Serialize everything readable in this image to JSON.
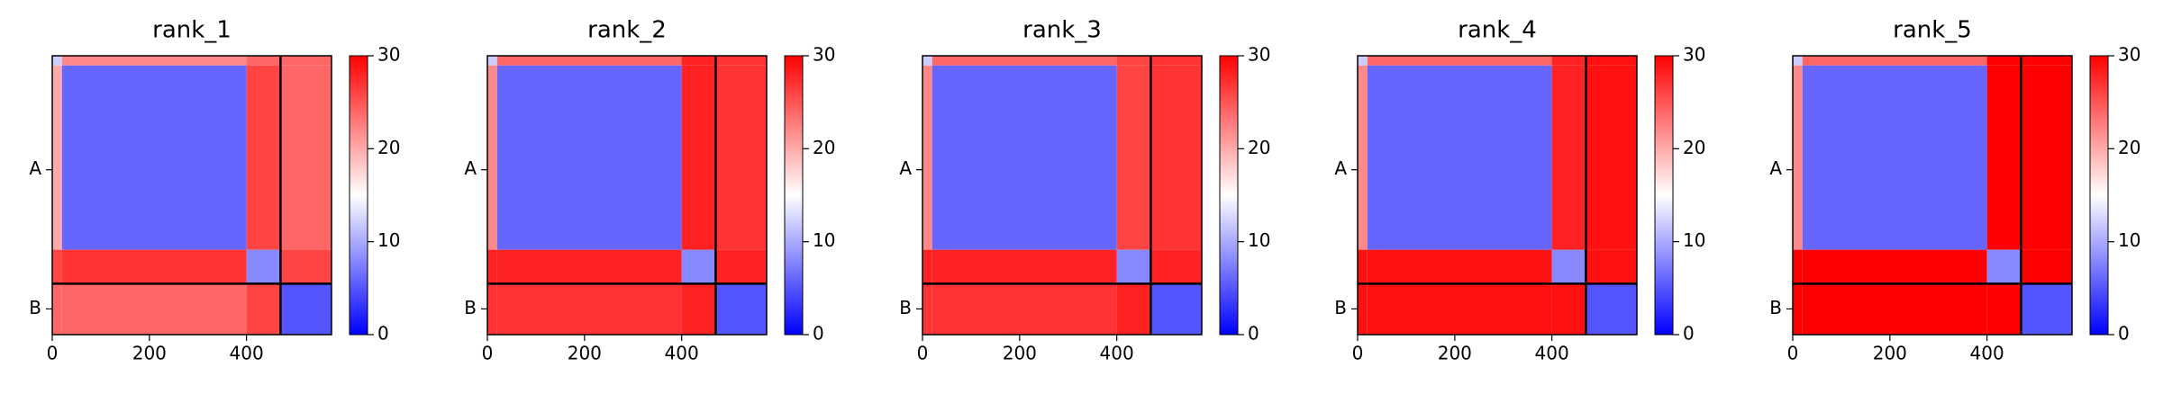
{
  "chart_data": [
    {
      "type": "heatmap",
      "title": "rank_1",
      "edges": [
        0,
        20,
        400,
        470,
        575
      ],
      "values": [
        [
          12,
          22,
          24,
          24
        ],
        [
          20,
          6,
          26,
          24
        ],
        [
          26,
          27,
          8,
          26
        ],
        [
          24,
          24,
          26,
          5
        ]
      ],
      "cmap": [
        "#0000ff",
        "#ffffff",
        "#ff0000"
      ],
      "xlim": [
        0,
        575
      ],
      "ylim": [
        575,
        0
      ],
      "xticks": [
        0,
        200,
        400
      ],
      "yticks": [
        {
          "value": 235,
          "label": "A"
        },
        {
          "value": 522,
          "label": "B"
        }
      ],
      "chain_boundaries": [
        470
      ],
      "colorbar_lim": [
        0,
        30
      ],
      "colorbar_ticks": [
        0,
        10,
        20,
        30
      ]
    },
    {
      "type": "heatmap",
      "title": "rank_2",
      "edges": [
        0,
        20,
        400,
        470,
        575
      ],
      "values": [
        [
          12,
          24,
          28,
          27
        ],
        [
          22,
          6,
          28,
          27
        ],
        [
          28,
          28,
          8,
          28
        ],
        [
          27,
          27,
          28,
          5
        ]
      ],
      "cmap": [
        "#0000ff",
        "#ffffff",
        "#ff0000"
      ],
      "xlim": [
        0,
        575
      ],
      "ylim": [
        575,
        0
      ],
      "xticks": [
        0,
        200,
        400
      ],
      "yticks": [
        {
          "value": 235,
          "label": "A"
        },
        {
          "value": 522,
          "label": "B"
        }
      ],
      "chain_boundaries": [
        470
      ],
      "colorbar_lim": [
        0,
        30
      ],
      "colorbar_ticks": [
        0,
        10,
        20,
        30
      ]
    },
    {
      "type": "heatmap",
      "title": "rank_3",
      "edges": [
        0,
        20,
        400,
        470,
        575
      ],
      "values": [
        [
          12,
          24,
          26,
          27
        ],
        [
          22,
          6,
          26,
          27
        ],
        [
          28,
          28,
          8,
          28
        ],
        [
          27,
          27,
          28,
          5
        ]
      ],
      "cmap": [
        "#0000ff",
        "#ffffff",
        "#ff0000"
      ],
      "xlim": [
        0,
        575
      ],
      "ylim": [
        575,
        0
      ],
      "xticks": [
        0,
        200,
        400
      ],
      "yticks": [
        {
          "value": 235,
          "label": "A"
        },
        {
          "value": 522,
          "label": "B"
        }
      ],
      "chain_boundaries": [
        470
      ],
      "colorbar_lim": [
        0,
        30
      ],
      "colorbar_ticks": [
        0,
        10,
        20,
        30
      ]
    },
    {
      "type": "heatmap",
      "title": "rank_4",
      "edges": [
        0,
        20,
        400,
        470,
        575
      ],
      "values": [
        [
          12,
          24,
          28,
          29
        ],
        [
          22,
          6,
          28,
          29
        ],
        [
          29,
          29,
          8,
          29
        ],
        [
          29,
          29,
          29,
          5
        ]
      ],
      "cmap": [
        "#0000ff",
        "#ffffff",
        "#ff0000"
      ],
      "xlim": [
        0,
        575
      ],
      "ylim": [
        575,
        0
      ],
      "xticks": [
        0,
        200,
        400
      ],
      "yticks": [
        {
          "value": 235,
          "label": "A"
        },
        {
          "value": 522,
          "label": "B"
        }
      ],
      "chain_boundaries": [
        470
      ],
      "colorbar_lim": [
        0,
        30
      ],
      "colorbar_ticks": [
        0,
        10,
        20,
        30
      ]
    },
    {
      "type": "heatmap",
      "title": "rank_5",
      "edges": [
        0,
        20,
        400,
        470,
        575
      ],
      "values": [
        [
          12,
          24,
          30,
          30
        ],
        [
          22,
          6,
          30,
          30
        ],
        [
          30,
          30,
          8,
          30
        ],
        [
          30,
          30,
          30,
          5
        ]
      ],
      "cmap": [
        "#0000ff",
        "#ffffff",
        "#ff0000"
      ],
      "xlim": [
        0,
        575
      ],
      "ylim": [
        575,
        0
      ],
      "xticks": [
        0,
        200,
        400
      ],
      "yticks": [
        {
          "value": 235,
          "label": "A"
        },
        {
          "value": 522,
          "label": "B"
        }
      ],
      "chain_boundaries": [
        470
      ],
      "colorbar_lim": [
        0,
        30
      ],
      "colorbar_ticks": [
        0,
        10,
        20,
        30
      ]
    }
  ]
}
